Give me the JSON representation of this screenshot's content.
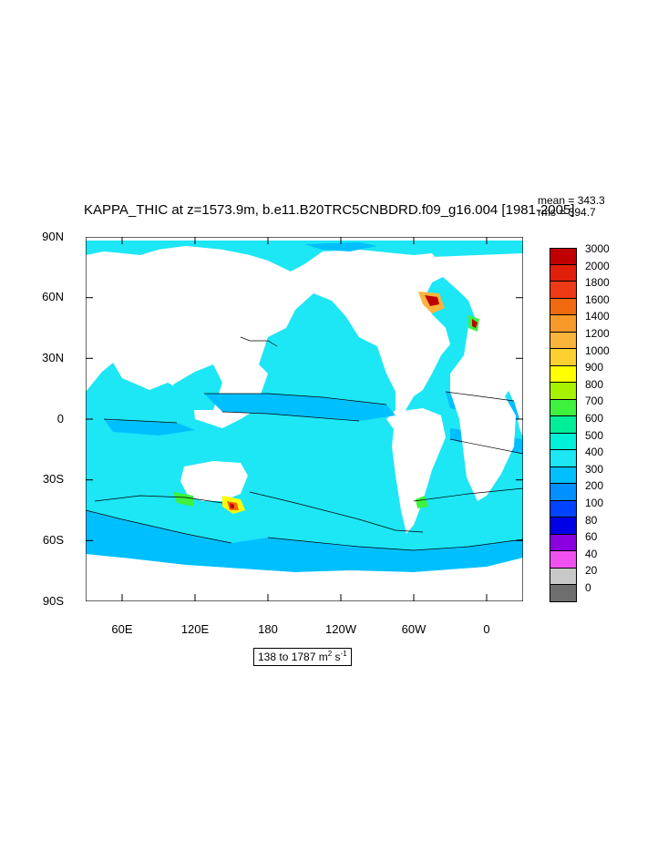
{
  "title": "KAPPA_THIC at z=1573.9m, b.e11.B20TRC5CNBDRD.f09_g16.004 [1981-2005]",
  "mean_text": "mean = 343.3",
  "rms_text": "rms = 394.7",
  "y_ticks": [
    "90N",
    "60N",
    "30N",
    "0",
    "30S",
    "60S",
    "90S"
  ],
  "x_ticks": [
    "60E",
    "120E",
    "180",
    "120W",
    "60W",
    "0"
  ],
  "colorbar": {
    "labels": [
      "3000",
      "2000",
      "1800",
      "1600",
      "1400",
      "1200",
      "1000",
      "900",
      "800",
      "700",
      "600",
      "500",
      "400",
      "300",
      "200",
      "100",
      "80",
      "60",
      "40",
      "20",
      "0"
    ],
    "colors": [
      "#c00000",
      "#e0200a",
      "#ee3a16",
      "#f26a10",
      "#f79a2a",
      "#f9b43c",
      "#fbd030",
      "#ffff00",
      "#a6f200",
      "#3ef23e",
      "#00ee9a",
      "#00f0d8",
      "#1de6f5",
      "#00bfff",
      "#0090ff",
      "#0044ff",
      "#0000e8",
      "#8a00e0",
      "#f050f0",
      "#c8c8c8",
      "#6e6e6e"
    ]
  },
  "units": {
    "range": "138 to 1787 m",
    "m_exp": "2",
    "s": " s",
    "s_exp": "-1"
  },
  "colors": {
    "ocean_main": "#1de6f5",
    "ocean_lower": "#00bfff",
    "land": "#ffffff"
  }
}
